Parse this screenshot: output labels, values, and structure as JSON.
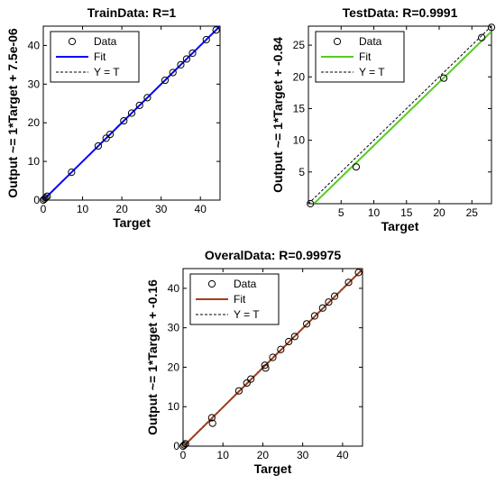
{
  "chart_data": [
    {
      "type": "scatter",
      "title": "TrainData: R=1",
      "xlabel": "Target",
      "ylabel": "Output ~= 1*Target + 7.5e-06",
      "xlim": [
        0,
        45
      ],
      "ylim": [
        0,
        45
      ],
      "xticks": [
        "0",
        "10",
        "20",
        "30",
        "40"
      ],
      "yticks": [
        "0",
        "10",
        "20",
        "30",
        "40"
      ],
      "fit_color": "#0000ff",
      "fit": {
        "slope": 1,
        "intercept": 7.5e-06
      },
      "legend": [
        "Data",
        "Fit",
        "Y = T"
      ],
      "legend_position": "top-left",
      "x": [
        0,
        0.3,
        0.6,
        1.0,
        7.2,
        14.0,
        16.0,
        17.0,
        20.5,
        22.5,
        24.5,
        26.5,
        31.0,
        33.0,
        35.0,
        36.5,
        38.0,
        41.5,
        44.0
      ],
      "y": [
        0,
        0.3,
        0.6,
        1.0,
        7.2,
        14.0,
        16.0,
        17.0,
        20.5,
        22.5,
        24.5,
        26.5,
        31.0,
        33.0,
        35.0,
        36.5,
        38.0,
        41.5,
        44.0
      ]
    },
    {
      "type": "scatter",
      "title": "TestData: R=0.9991",
      "xlabel": "Target",
      "ylabel": "Output ~= 1*Target + -0.84",
      "xlim": [
        0,
        28
      ],
      "ylim": [
        0,
        28
      ],
      "xticks": [
        "5",
        "10",
        "15",
        "20",
        "25"
      ],
      "yticks": [
        "5",
        "10",
        "15",
        "20",
        "25"
      ],
      "fit_color": "#55cc22",
      "fit": {
        "slope": 1,
        "intercept": -0.84
      },
      "legend": [
        "Data",
        "Fit",
        "Y = T"
      ],
      "legend_position": "top-left",
      "x": [
        0.3,
        7.3,
        20.7,
        26.5,
        28.0
      ],
      "y": [
        0.0,
        5.8,
        19.8,
        26.2,
        27.8
      ]
    },
    {
      "type": "scatter",
      "title": "OveralData: R=0.99975",
      "xlabel": "Target",
      "ylabel": "Output ~= 1*Target + -0.16",
      "xlim": [
        0,
        45
      ],
      "ylim": [
        0,
        45
      ],
      "xticks": [
        "0",
        "10",
        "20",
        "30",
        "40"
      ],
      "yticks": [
        "0",
        "10",
        "20",
        "30",
        "40"
      ],
      "fit_color": "#a0401a",
      "fit": {
        "slope": 1,
        "intercept": -0.16
      },
      "legend": [
        "Data",
        "Fit",
        "Y = T"
      ],
      "legend_position": "top-left",
      "x": [
        0,
        0.3,
        0.6,
        7.2,
        7.4,
        14.0,
        16.0,
        17.0,
        20.5,
        20.7,
        22.5,
        24.5,
        26.5,
        28.0,
        31.0,
        33.0,
        35.0,
        36.5,
        38.0,
        41.5,
        44.0
      ],
      "y": [
        0,
        0.3,
        0.6,
        7.2,
        5.8,
        14.0,
        16.0,
        17.0,
        20.5,
        19.8,
        22.5,
        24.5,
        26.5,
        27.8,
        31.0,
        33.0,
        35.0,
        36.5,
        38.0,
        41.5,
        44.0
      ]
    }
  ]
}
